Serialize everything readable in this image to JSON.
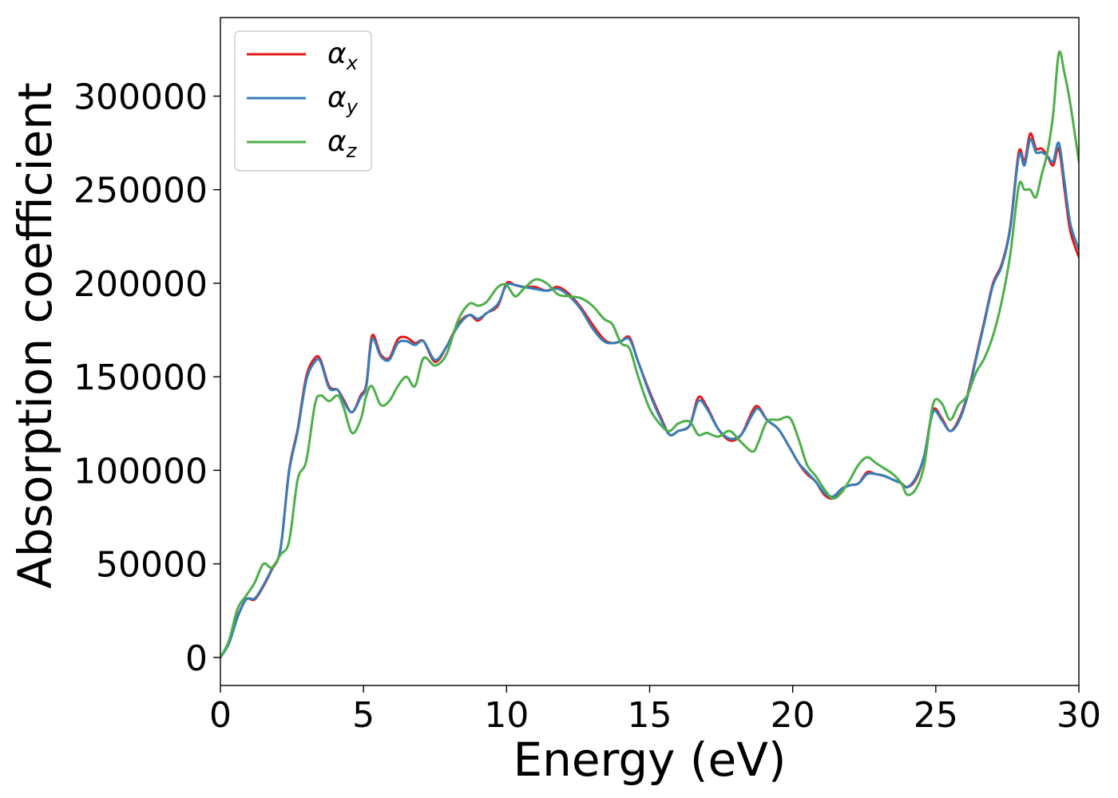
{
  "chart_data": {
    "type": "line",
    "xlabel": "Energy (eV)",
    "ylabel": "Absorption coefficient",
    "xlim": [
      0,
      30
    ],
    "ylim": [
      -15000,
      342000
    ],
    "xticks": [
      0,
      5,
      10,
      15,
      20,
      25,
      30
    ],
    "xtick_labels": [
      "0",
      "5",
      "10",
      "15",
      "20",
      "25",
      "30"
    ],
    "yticks": [
      0,
      50000,
      100000,
      150000,
      200000,
      250000,
      300000
    ],
    "ytick_labels": [
      "0",
      "50000",
      "100000",
      "150000",
      "200000",
      "250000",
      "300000"
    ],
    "grid": false,
    "legend_position": "top-left",
    "series": [
      {
        "name": "αx",
        "base": "α",
        "sub": "x",
        "color": "#e41a1c",
        "x": [
          0,
          0.3,
          0.6,
          0.9,
          1.2,
          1.5,
          1.8,
          2.1,
          2.4,
          2.7,
          3.0,
          3.3,
          3.5,
          3.8,
          4.1,
          4.3,
          4.6,
          4.9,
          5.1,
          5.3,
          5.6,
          5.9,
          6.2,
          6.5,
          6.8,
          7.1,
          7.5,
          7.9,
          8.3,
          8.7,
          9.0,
          9.3,
          9.7,
          10.0,
          10.3,
          10.6,
          11.0,
          11.4,
          11.8,
          12.2,
          12.6,
          13.0,
          13.4,
          13.7,
          14.0,
          14.3,
          14.6,
          15.0,
          15.4,
          15.7,
          16.0,
          16.4,
          16.7,
          17.0,
          17.4,
          17.8,
          18.2,
          18.6,
          18.8,
          19.1,
          19.5,
          19.9,
          20.2,
          20.5,
          20.8,
          21.1,
          21.4,
          21.7,
          22.0,
          22.3,
          22.6,
          22.9,
          23.2,
          23.5,
          23.8,
          24.0,
          24.3,
          24.6,
          24.9,
          25.2,
          25.5,
          25.8,
          26.1,
          26.4,
          26.7,
          27.0,
          27.3,
          27.6,
          27.9,
          28.1,
          28.3,
          28.5,
          28.7,
          28.9,
          29.1,
          29.3,
          29.5,
          29.7,
          30.0
        ],
        "y": [
          0,
          8000,
          22000,
          31000,
          31000,
          38000,
          47000,
          58000,
          100000,
          122000,
          150000,
          160000,
          159000,
          145000,
          143000,
          138000,
          131000,
          140000,
          146000,
          172000,
          162000,
          160000,
          170000,
          171000,
          168000,
          169000,
          158000,
          166000,
          178000,
          183000,
          180000,
          184000,
          188000,
          200000,
          199000,
          198000,
          198000,
          196000,
          198000,
          194000,
          187000,
          178000,
          170000,
          168000,
          169000,
          171000,
          158000,
          142000,
          128000,
          119000,
          121000,
          124000,
          139000,
          134000,
          122000,
          116000,
          119000,
          132000,
          134000,
          127000,
          122000,
          112000,
          104000,
          98000,
          94000,
          87000,
          85000,
          90000,
          92000,
          93000,
          99000,
          98000,
          97000,
          95000,
          93000,
          91000,
          95000,
          108000,
          132000,
          128000,
          121000,
          127000,
          140000,
          160000,
          180000,
          200000,
          210000,
          230000,
          270000,
          265000,
          280000,
          272000,
          272000,
          268000,
          263000,
          272000,
          250000,
          228000,
          214000
        ]
      },
      {
        "name": "αy",
        "base": "α",
        "sub": "y",
        "color": "#377eb8",
        "x": [
          0,
          0.3,
          0.6,
          0.9,
          1.2,
          1.5,
          1.8,
          2.1,
          2.4,
          2.7,
          3.0,
          3.3,
          3.5,
          3.8,
          4.1,
          4.3,
          4.6,
          4.9,
          5.1,
          5.3,
          5.6,
          5.9,
          6.2,
          6.5,
          6.8,
          7.1,
          7.5,
          7.9,
          8.3,
          8.7,
          9.0,
          9.3,
          9.7,
          10.0,
          10.3,
          10.6,
          11.0,
          11.4,
          11.8,
          12.2,
          12.6,
          13.0,
          13.4,
          13.7,
          14.0,
          14.3,
          14.6,
          15.0,
          15.4,
          15.7,
          16.0,
          16.4,
          16.7,
          17.0,
          17.4,
          17.8,
          18.2,
          18.6,
          18.8,
          19.1,
          19.5,
          19.9,
          20.2,
          20.5,
          20.8,
          21.1,
          21.4,
          21.7,
          22.0,
          22.3,
          22.6,
          22.9,
          23.2,
          23.5,
          23.8,
          24.0,
          24.3,
          24.6,
          24.9,
          25.2,
          25.5,
          25.8,
          26.1,
          26.4,
          26.7,
          27.0,
          27.3,
          27.6,
          27.9,
          28.1,
          28.3,
          28.5,
          28.7,
          28.9,
          29.1,
          29.3,
          29.5,
          29.7,
          30.0
        ],
        "y": [
          0,
          7500,
          21500,
          31000,
          31500,
          38500,
          47500,
          58000,
          99000,
          121000,
          148000,
          158000,
          158000,
          144000,
          143000,
          137000,
          131000,
          139000,
          145000,
          170000,
          161000,
          159000,
          168000,
          169000,
          167000,
          169000,
          159000,
          166000,
          177000,
          183000,
          181000,
          184000,
          189000,
          199000,
          199000,
          198000,
          197000,
          196000,
          197000,
          193000,
          186000,
          176000,
          169000,
          168000,
          169000,
          170000,
          158000,
          141000,
          127000,
          119000,
          121000,
          124000,
          137000,
          133000,
          122000,
          117000,
          119000,
          130000,
          133000,
          127000,
          122000,
          112000,
          104000,
          99000,
          94000,
          88000,
          86000,
          90000,
          92000,
          93000,
          98000,
          98000,
          97000,
          95000,
          93000,
          91000,
          96000,
          108000,
          131000,
          127000,
          121000,
          126000,
          139000,
          159000,
          179000,
          199000,
          209000,
          229000,
          268000,
          263000,
          277000,
          270000,
          270000,
          268000,
          265000,
          275000,
          254000,
          232000,
          218000
        ]
      },
      {
        "name": "αz",
        "base": "α",
        "sub": "z",
        "color": "#4daf4a",
        "x": [
          0,
          0.3,
          0.6,
          0.9,
          1.2,
          1.5,
          1.8,
          2.1,
          2.4,
          2.7,
          3.0,
          3.3,
          3.5,
          3.8,
          4.1,
          4.3,
          4.6,
          4.9,
          5.1,
          5.3,
          5.6,
          5.9,
          6.2,
          6.5,
          6.8,
          7.1,
          7.5,
          7.9,
          8.3,
          8.7,
          9.0,
          9.3,
          9.7,
          10.0,
          10.3,
          10.6,
          11.0,
          11.4,
          11.8,
          12.2,
          12.6,
          13.0,
          13.4,
          13.7,
          14.0,
          14.3,
          14.6,
          15.0,
          15.4,
          15.7,
          16.0,
          16.4,
          16.7,
          17.0,
          17.4,
          17.8,
          18.2,
          18.6,
          18.8,
          19.1,
          19.5,
          19.9,
          20.2,
          20.5,
          20.8,
          21.1,
          21.4,
          21.7,
          22.0,
          22.3,
          22.6,
          22.9,
          23.2,
          23.5,
          23.8,
          24.0,
          24.3,
          24.6,
          24.9,
          25.2,
          25.5,
          25.8,
          26.1,
          26.4,
          26.7,
          27.0,
          27.3,
          27.6,
          27.9,
          28.1,
          28.3,
          28.5,
          28.7,
          28.9,
          29.1,
          29.3,
          29.5,
          29.7,
          30.0
        ],
        "y": [
          0,
          9000,
          26000,
          33000,
          40000,
          50000,
          48000,
          55000,
          62000,
          95000,
          105000,
          135000,
          140000,
          137000,
          140000,
          134000,
          120000,
          127000,
          140000,
          145000,
          135000,
          137000,
          145000,
          150000,
          145000,
          160000,
          156000,
          162000,
          180000,
          189000,
          188000,
          190000,
          198000,
          199000,
          193000,
          197000,
          202000,
          200000,
          194000,
          193000,
          192000,
          188000,
          181000,
          178000,
          168000,
          165000,
          150000,
          133000,
          124000,
          121000,
          125000,
          126000,
          119000,
          120000,
          118000,
          121000,
          115000,
          110000,
          115000,
          126000,
          127000,
          128000,
          117000,
          103000,
          97000,
          90000,
          85000,
          88000,
          95000,
          103000,
          107000,
          104000,
          101000,
          98000,
          93000,
          87000,
          90000,
          103000,
          135000,
          136000,
          127000,
          135000,
          140000,
          152000,
          160000,
          172000,
          190000,
          215000,
          252000,
          250000,
          250000,
          246000,
          258000,
          270000,
          290000,
          323000,
          312000,
          296000,
          265000
        ]
      }
    ]
  }
}
